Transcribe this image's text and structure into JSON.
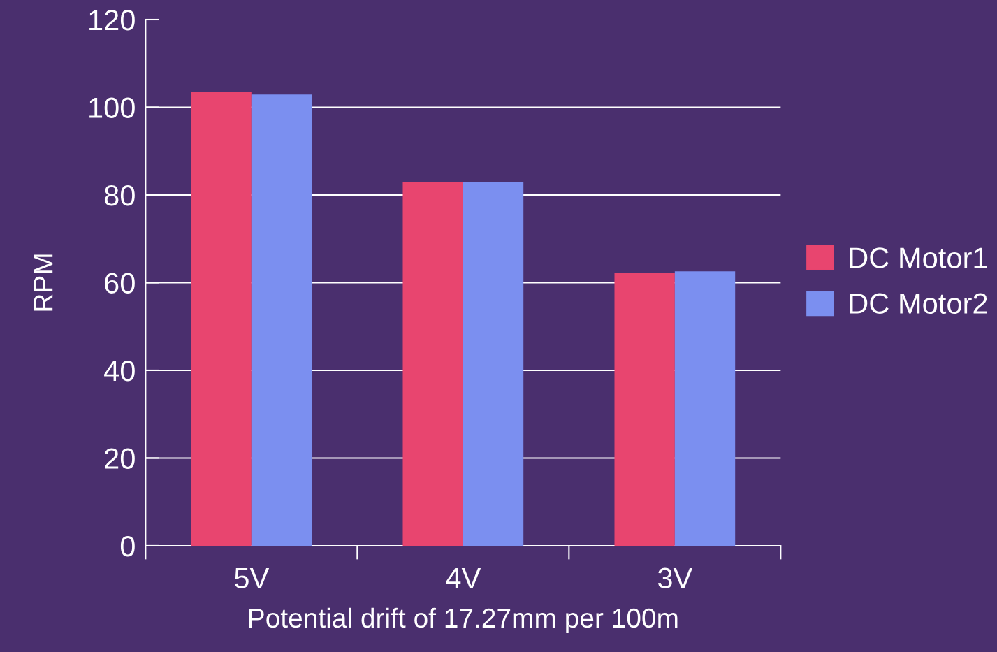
{
  "chart_data": {
    "type": "bar",
    "xlabel": "Potential drift of 17.27mm per 100m",
    "ylabel": "RPM",
    "categories": [
      "5V",
      "4V",
      "3V"
    ],
    "series": [
      {
        "name": "DC Motor1",
        "color": "#e8456f",
        "values": [
          103.6,
          82.9,
          62.2
        ]
      },
      {
        "name": "DC Motor2",
        "color": "#7b8ff0",
        "values": [
          102.9,
          82.9,
          62.6
        ]
      }
    ],
    "ylim": [
      0,
      120
    ],
    "yticks": [
      0,
      20,
      40,
      60,
      80,
      100,
      120
    ],
    "grid": "y",
    "legend": "right"
  }
}
